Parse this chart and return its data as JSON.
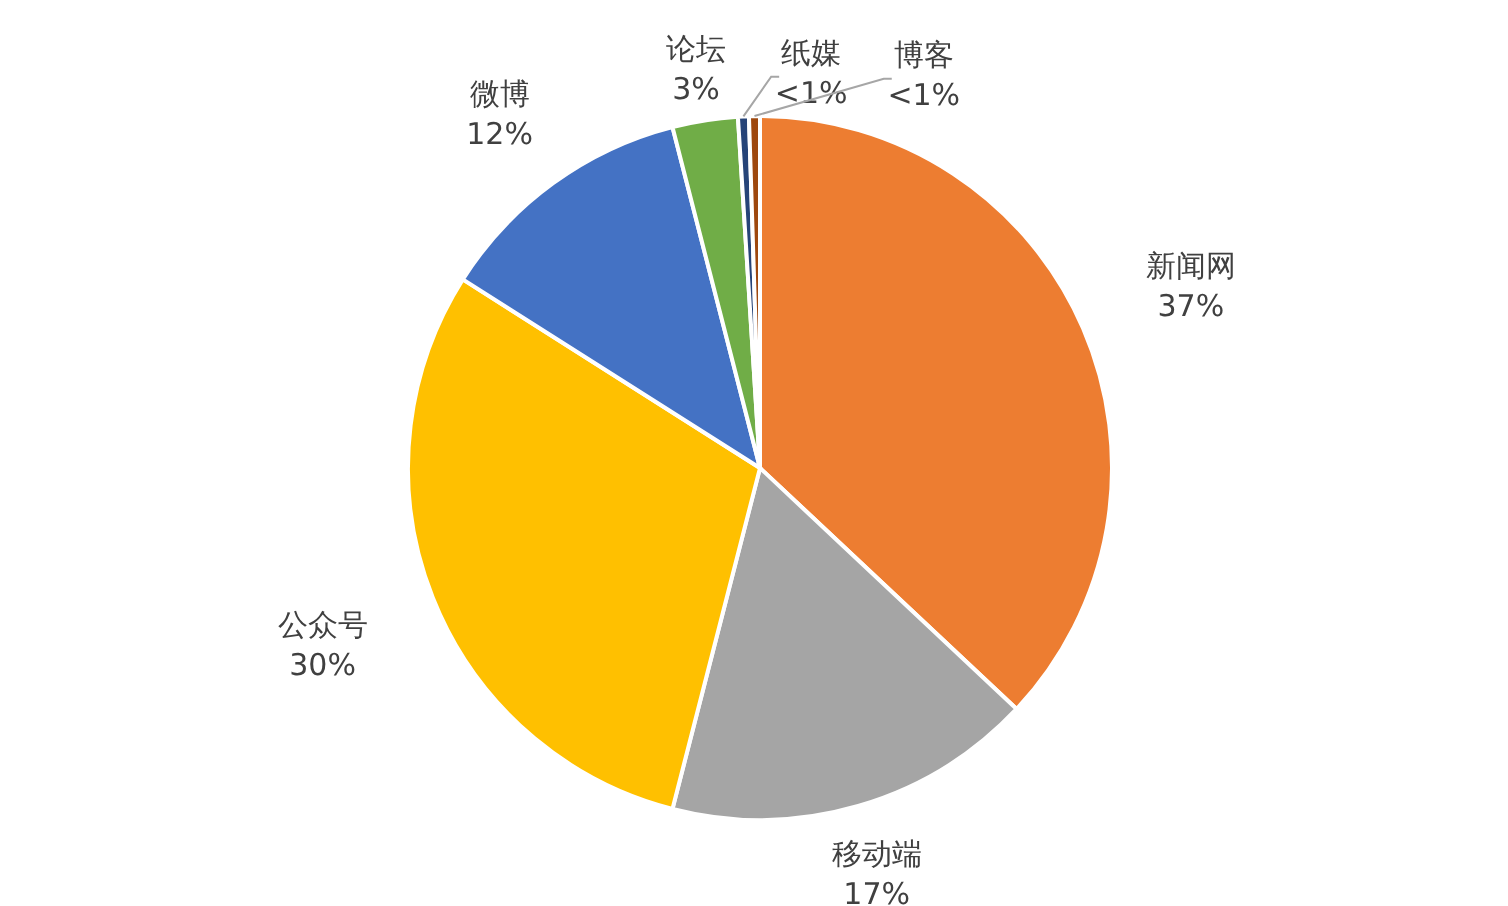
{
  "chart_data": {
    "type": "pie",
    "categories": [
      "新闻网",
      "移动端",
      "公众号",
      "微博",
      "论坛",
      "纸媒",
      "博客"
    ],
    "values": [
      37,
      17,
      30,
      12,
      3,
      0.5,
      0.5
    ],
    "colors": [
      "#ed7d31",
      "#a5a5a5",
      "#ffc000",
      "#4472c4",
      "#70ad47",
      "#264478",
      "#9e480e"
    ],
    "value_labels": [
      "37%",
      "17%",
      "30%",
      "12%",
      "3%",
      "<1%",
      "<1%"
    ],
    "legend": false
  }
}
